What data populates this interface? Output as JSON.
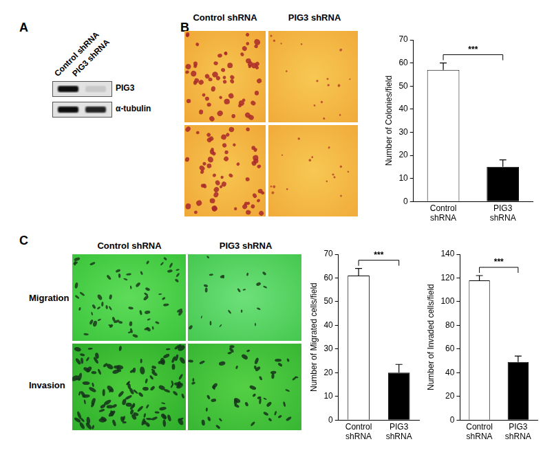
{
  "panels": {
    "A": {
      "label": "A",
      "lanes": [
        "Control shRNA",
        "PIG3 shRNA"
      ],
      "bands": [
        "PIG3",
        "α-tubulin"
      ]
    },
    "B": {
      "label": "B",
      "columns": [
        "Control shRNA",
        "PIG3 shRNA"
      ]
    },
    "C": {
      "label": "C",
      "columns": [
        "Control shRNA",
        "PIG3 shRNA"
      ],
      "rows": [
        "Migration",
        "Invasion"
      ]
    }
  },
  "chart_data": [
    {
      "type": "bar",
      "categories": [
        "Control shRNA",
        "PIG3 shRNA"
      ],
      "values": [
        57,
        15
      ],
      "errors": [
        3,
        3
      ],
      "colors": [
        "#ffffff",
        "#000000"
      ],
      "y_label": "Number of Colonies/field",
      "ylim": [
        0,
        70
      ],
      "yticks": [
        0,
        10,
        20,
        30,
        40,
        50,
        60,
        70
      ],
      "grid": false,
      "annotations": [
        {
          "text": "***",
          "from": "Control shRNA",
          "to": "PIG3 shRNA"
        }
      ]
    },
    {
      "type": "bar",
      "categories": [
        "Control shRNA",
        "PIG3 shRNA"
      ],
      "values": [
        61,
        20
      ],
      "errors": [
        3,
        3.5
      ],
      "colors": [
        "#ffffff",
        "#000000"
      ],
      "y_label": "Number of Migrated cells/field",
      "ylim": [
        0,
        70
      ],
      "yticks": [
        0,
        10,
        20,
        30,
        40,
        50,
        60,
        70
      ],
      "grid": false,
      "annotations": [
        {
          "text": "***",
          "from": "Control shRNA",
          "to": "PIG3 shRNA"
        }
      ]
    },
    {
      "type": "bar",
      "categories": [
        "Control shRNA",
        "PIG3 shRNA"
      ],
      "values": [
        118,
        49
      ],
      "errors": [
        4,
        5
      ],
      "colors": [
        "#ffffff",
        "#000000"
      ],
      "y_label": "Number of Invaded cells/field",
      "ylim": [
        0,
        140
      ],
      "yticks": [
        0,
        20,
        40,
        60,
        80,
        100,
        120,
        140
      ],
      "grid": false,
      "annotations": [
        {
          "text": "***",
          "from": "Control shRNA",
          "to": "PIG3 shRNA"
        }
      ]
    }
  ]
}
